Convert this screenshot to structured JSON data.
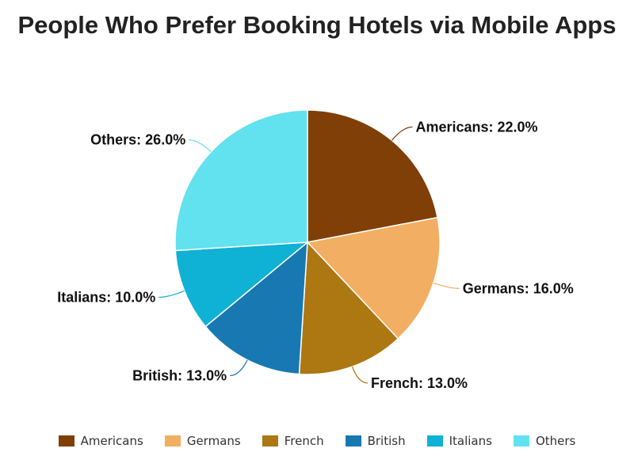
{
  "chart_data": {
    "type": "pie",
    "title": "People Who Prefer Booking Hotels via Mobile Apps",
    "slices": [
      {
        "name": "Americans",
        "value": 22.0,
        "label": "Americans: 22.0%",
        "color": "#7f3f07"
      },
      {
        "name": "Germans",
        "value": 16.0,
        "label": "Germans: 16.0%",
        "color": "#f2ae62"
      },
      {
        "name": "French",
        "value": 13.0,
        "label": "French: 13.0%",
        "color": "#ad7712"
      },
      {
        "name": "British",
        "value": 13.0,
        "label": "British: 13.0%",
        "color": "#1878b2"
      },
      {
        "name": "Italians",
        "value": 10.0,
        "label": "Italians: 10.0%",
        "color": "#0fb2d4"
      },
      {
        "name": "Others",
        "value": 26.0,
        "label": "Others: 26.0%",
        "color": "#62e1ef"
      }
    ],
    "legend_position": "bottom",
    "start_angle": "top",
    "direction": "clockwise"
  }
}
